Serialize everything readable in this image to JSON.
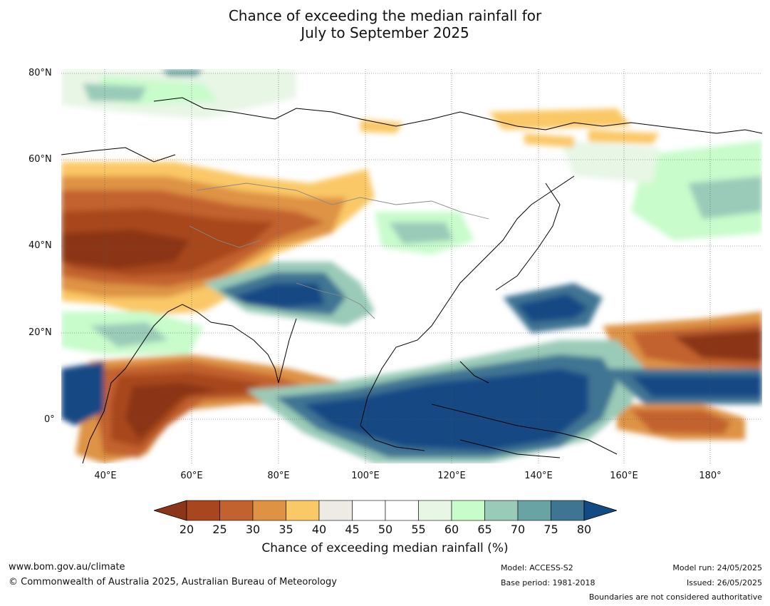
{
  "title": {
    "line1": "Chance of exceeding the median rainfall for",
    "line2": "July to September 2025"
  },
  "map": {
    "lat_labels": [
      "80°N",
      "60°N",
      "40°N",
      "20°N",
      "0°"
    ],
    "lon_labels": [
      "40°E",
      "60°E",
      "80°E",
      "100°E",
      "120°E",
      "140°E",
      "160°E",
      "180°"
    ],
    "lon_range": [
      30,
      192
    ],
    "lat_range": [
      -10,
      81
    ]
  },
  "colorbar": {
    "ticks": [
      "20",
      "25",
      "30",
      "35",
      "40",
      "45",
      "50",
      "55",
      "60",
      "65",
      "70",
      "75",
      "80"
    ],
    "colors": [
      "#8b3519",
      "#a8461f",
      "#c2622e",
      "#de9344",
      "#fac866",
      "#eeeae4",
      "#ffffff",
      "#ffffff",
      "#e8f6e6",
      "#c8fccb",
      "#9acbb8",
      "#6aa3a3",
      "#3f7593",
      "#124a84"
    ],
    "title": "Chance of exceeding median rainfall (%)"
  },
  "footer": {
    "url": "www.bom.gov.au/climate",
    "copyright": "© Commonwealth of Australia 2025, Australian Bureau of Meteorology",
    "model": "Model: ACCESS-S2",
    "base_period": "Base period: 1981-2018",
    "model_run": "Model run: 24/05/2025",
    "issued": "Issued: 26/05/2025",
    "boundaries": "Boundaries are not considered authoritative"
  }
}
